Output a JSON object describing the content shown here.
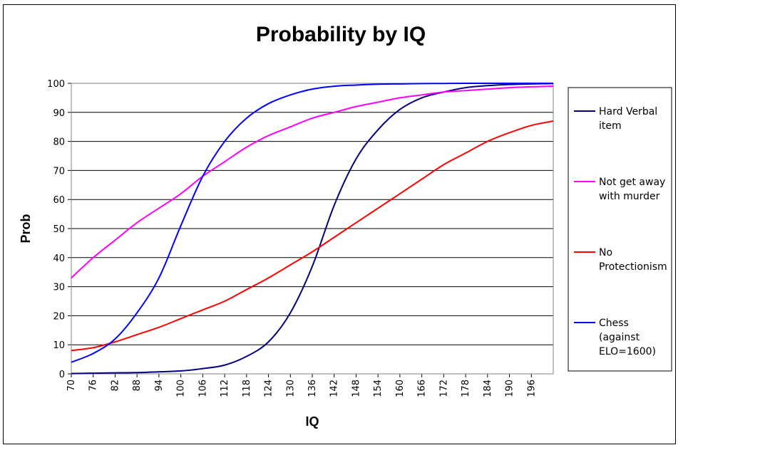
{
  "chart_data": {
    "type": "line",
    "title": "Probability by IQ",
    "xlabel": "IQ",
    "ylabel": "Prob",
    "xlim": [
      70,
      202
    ],
    "ylim": [
      0,
      100
    ],
    "y_ticks": [
      0,
      10,
      20,
      30,
      40,
      50,
      60,
      70,
      80,
      90,
      100
    ],
    "x_ticks": [
      70,
      76,
      82,
      88,
      94,
      100,
      106,
      112,
      118,
      124,
      130,
      136,
      142,
      148,
      154,
      160,
      166,
      172,
      178,
      184,
      190,
      196
    ],
    "grid": true,
    "legend_position": "right",
    "series": [
      {
        "name": "Hard Verbal item",
        "legend_lines": [
          "Hard Verbal",
          "item"
        ],
        "color": "#000080",
        "x": [
          70,
          80,
          90,
          100,
          106,
          112,
          118,
          124,
          130,
          136,
          142,
          148,
          154,
          160,
          166,
          172,
          178,
          184,
          190,
          196,
          202
        ],
        "y": [
          0.1,
          0.3,
          0.5,
          1,
          1.8,
          3,
          6,
          11,
          21,
          37,
          58,
          74,
          84,
          91,
          95,
          97,
          98.5,
          99.2,
          99.6,
          99.8,
          99.9
        ]
      },
      {
        "name": "Not get away with murder",
        "legend_lines": [
          "Not get away",
          "with murder"
        ],
        "color": "#ff00ff",
        "x": [
          70,
          76,
          82,
          88,
          94,
          100,
          106,
          112,
          118,
          124,
          130,
          136,
          142,
          148,
          154,
          160,
          166,
          172,
          178,
          184,
          190,
          196,
          202
        ],
        "y": [
          33,
          40,
          46,
          52,
          57,
          62,
          68,
          73,
          78,
          82,
          85,
          88,
          90,
          92,
          93.5,
          95,
          96,
          97,
          97.5,
          98,
          98.5,
          98.8,
          99
        ]
      },
      {
        "name": "No Protectionism",
        "legend_lines": [
          "No",
          "Protectionism"
        ],
        "color": "#ff0000",
        "x": [
          70,
          76,
          82,
          88,
          94,
          100,
          106,
          112,
          118,
          124,
          130,
          136,
          142,
          148,
          154,
          160,
          166,
          172,
          178,
          184,
          190,
          196,
          202
        ],
        "y": [
          8,
          9,
          11,
          13.5,
          16,
          19,
          22,
          25,
          29,
          33,
          37.5,
          42,
          47,
          52,
          57,
          62,
          67,
          72,
          76,
          80,
          83,
          85.5,
          87
        ]
      },
      {
        "name": "Chess (against ELO=1600)",
        "legend_lines": [
          "Chess",
          "(against",
          "ELO=1600)"
        ],
        "color": "#0000ff",
        "x": [
          70,
          76,
          82,
          88,
          94,
          100,
          106,
          112,
          118,
          124,
          130,
          136,
          142,
          148,
          154,
          160,
          166,
          172,
          178,
          184,
          190,
          196,
          202
        ],
        "y": [
          4,
          7,
          12,
          21,
          33,
          51,
          68,
          80,
          88,
          93,
          96,
          98,
          99,
          99.4,
          99.7,
          99.8,
          99.9,
          99.95,
          100,
          100,
          100,
          100,
          100
        ]
      }
    ]
  }
}
